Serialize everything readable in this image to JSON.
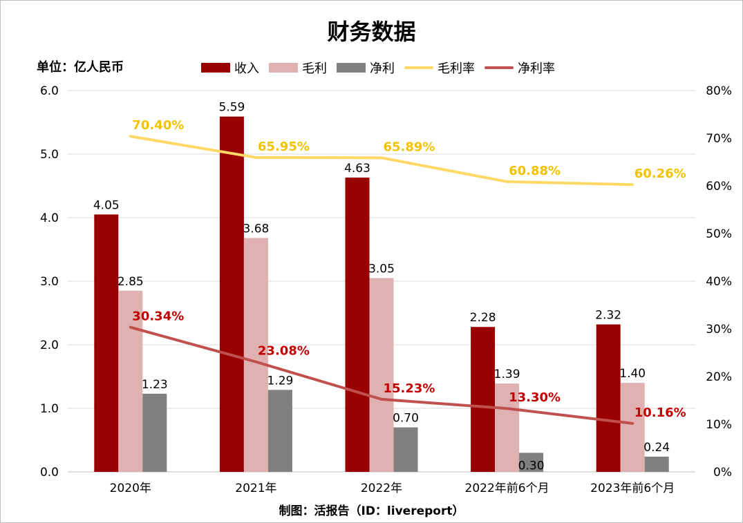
{
  "header": {
    "title": "财务数据",
    "unit": "单位：亿人民币",
    "footer": "制图：活报告（ID：livereport）"
  },
  "legend": [
    {
      "label": "收入",
      "kind": "box",
      "color": "#990000"
    },
    {
      "label": "毛利",
      "kind": "box",
      "color": "#E0B1B1"
    },
    {
      "label": "净利",
      "kind": "box",
      "color": "#808080"
    },
    {
      "label": "毛利率",
      "kind": "line",
      "color": "#FFD966"
    },
    {
      "label": "净利率",
      "kind": "line",
      "color": "#C0504D"
    }
  ],
  "chart_data": {
    "type": "bar",
    "title": "财务数据",
    "xlabel": "",
    "ylabel": "单位：亿人民币",
    "categories": [
      "2020年",
      "2021年",
      "2022年",
      "2022年前6个月",
      "2023年前6个月"
    ],
    "ylim": [
      0,
      6
    ],
    "y_ticks": [
      "0.0",
      "1.0",
      "2.0",
      "3.0",
      "4.0",
      "5.0",
      "6.0"
    ],
    "y2lim": [
      0,
      80
    ],
    "y2_ticks": [
      "0%",
      "10%",
      "20%",
      "30%",
      "40%",
      "50%",
      "60%",
      "70%",
      "80%"
    ],
    "grid": true,
    "legend_position": "top",
    "series": [
      {
        "name": "收入",
        "type": "bar",
        "axis": "left",
        "color": "#990000",
        "values": [
          4.05,
          5.59,
          4.63,
          2.28,
          2.32
        ],
        "labels": [
          "4.05",
          "5.59",
          "4.63",
          "2.28",
          "2.32"
        ],
        "label_color": "#000000"
      },
      {
        "name": "毛利",
        "type": "bar",
        "axis": "left",
        "color": "#E0B1B1",
        "values": [
          2.85,
          3.68,
          3.05,
          1.39,
          1.4
        ],
        "labels": [
          "2.85",
          "3.68",
          "3.05",
          "1.39",
          "1.40"
        ],
        "label_color": "#000000"
      },
      {
        "name": "净利",
        "type": "bar",
        "axis": "left",
        "color": "#808080",
        "values": [
          1.23,
          1.29,
          0.7,
          0.3,
          0.24
        ],
        "labels": [
          "1.23",
          "1.29",
          "0.70",
          "0.30",
          "0.24"
        ],
        "label_color": "#000000"
      },
      {
        "name": "毛利率",
        "type": "line",
        "axis": "right",
        "color": "#FFD966",
        "values": [
          70.4,
          65.95,
          65.89,
          60.88,
          60.26
        ],
        "labels": [
          "70.40%",
          "65.95%",
          "65.89%",
          "60.88%",
          "60.26%"
        ],
        "label_color": "#F2C200"
      },
      {
        "name": "净利率",
        "type": "line",
        "axis": "right",
        "color": "#C0504D",
        "values": [
          30.34,
          23.08,
          15.23,
          13.3,
          10.16
        ],
        "labels": [
          "30.34%",
          "23.08%",
          "15.23%",
          "13.30%",
          "10.16%"
        ],
        "label_color": "#C00000"
      }
    ]
  }
}
